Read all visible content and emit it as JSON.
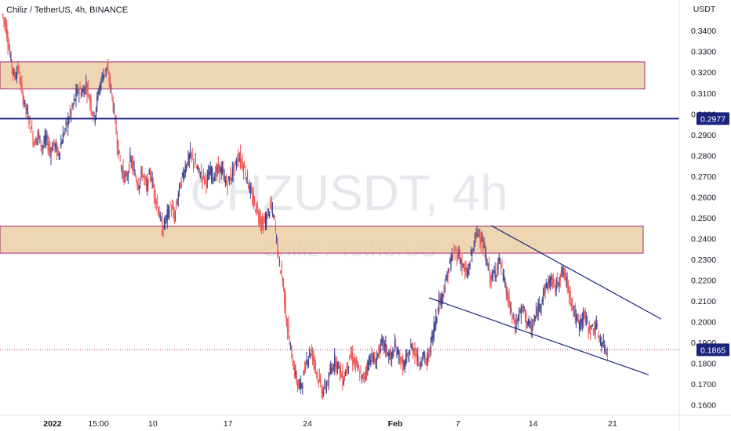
{
  "header": {
    "title": "Chiliz / TetherUS, 4h, BINANCE"
  },
  "watermark": {
    "symbol": "CHZUSDT, 4h",
    "name": "Chiliz / TetherUS"
  },
  "chart_data": {
    "type": "candlestick",
    "symbol": "CHZUSDT",
    "interval": "4h",
    "exchange": "BINANCE",
    "currency": "USDT",
    "ylim": [
      0.155,
      0.3525
    ],
    "y_ticks": [
      "0.3400",
      "0.3300",
      "0.3200",
      "0.3100",
      "0.3000",
      "0.2900",
      "0.2800",
      "0.2700",
      "0.2600",
      "0.2500",
      "0.2400",
      "0.2300",
      "0.2200",
      "0.2100",
      "0.2000",
      "0.1900",
      "0.1800",
      "0.1700",
      "0.1600"
    ],
    "x_ticks": [
      "2022",
      "15:00",
      "10",
      "17",
      "24",
      "Feb",
      "7",
      "14",
      "21"
    ],
    "current_price": 0.1865,
    "current_price_label": "0.1865",
    "horizontal_line": 0.2977,
    "horizontal_line_label": "0.2977",
    "resistance_zones": [
      {
        "low": 0.312,
        "high": 0.325
      },
      {
        "low": 0.233,
        "high": 0.246
      }
    ],
    "wedge": {
      "upper": [
        [
          0.2463,
          0.2013
        ]
      ],
      "lower": [
        [
          0.2115,
          0.1745
        ]
      ]
    },
    "up_color": "#3b3f8f",
    "down_color": "#ef5350",
    "line_color": "#1a237e",
    "zone_fill": "#ebcfa6",
    "zone_border": "#9c2a6e",
    "path": [
      0.348,
      0.342,
      0.328,
      0.318,
      0.322,
      0.31,
      0.302,
      0.296,
      0.286,
      0.29,
      0.284,
      0.288,
      0.282,
      0.286,
      0.28,
      0.288,
      0.294,
      0.3,
      0.306,
      0.312,
      0.31,
      0.314,
      0.306,
      0.298,
      0.31,
      0.318,
      0.322,
      0.314,
      0.3,
      0.282,
      0.272,
      0.268,
      0.278,
      0.272,
      0.266,
      0.272,
      0.264,
      0.272,
      0.262,
      0.254,
      0.244,
      0.25,
      0.256,
      0.25,
      0.262,
      0.27,
      0.276,
      0.28,
      0.276,
      0.272,
      0.27,
      0.268,
      0.272,
      0.27,
      0.274,
      0.272,
      0.266,
      0.27,
      0.274,
      0.28,
      0.276,
      0.27,
      0.262,
      0.256,
      0.252,
      0.246,
      0.25,
      0.256,
      0.248,
      0.23,
      0.22,
      0.2,
      0.186,
      0.176,
      0.168,
      0.172,
      0.182,
      0.186,
      0.18,
      0.172,
      0.166,
      0.17,
      0.176,
      0.182,
      0.178,
      0.172,
      0.178,
      0.184,
      0.18,
      0.176,
      0.172,
      0.178,
      0.184,
      0.18,
      0.186,
      0.19,
      0.186,
      0.182,
      0.188,
      0.184,
      0.178,
      0.182,
      0.188,
      0.186,
      0.18,
      0.184,
      0.18,
      0.19,
      0.2,
      0.21,
      0.214,
      0.222,
      0.23,
      0.234,
      0.232,
      0.226,
      0.222,
      0.232,
      0.24,
      0.244,
      0.236,
      0.228,
      0.22,
      0.224,
      0.23,
      0.222,
      0.212,
      0.204,
      0.198,
      0.204,
      0.206,
      0.2,
      0.196,
      0.202,
      0.208,
      0.214,
      0.218,
      0.22,
      0.216,
      0.222,
      0.224,
      0.218,
      0.21,
      0.202,
      0.198,
      0.204,
      0.198,
      0.196,
      0.198,
      0.192,
      0.188,
      0.186
    ],
    "x_domain": [
      0,
      145
    ]
  }
}
